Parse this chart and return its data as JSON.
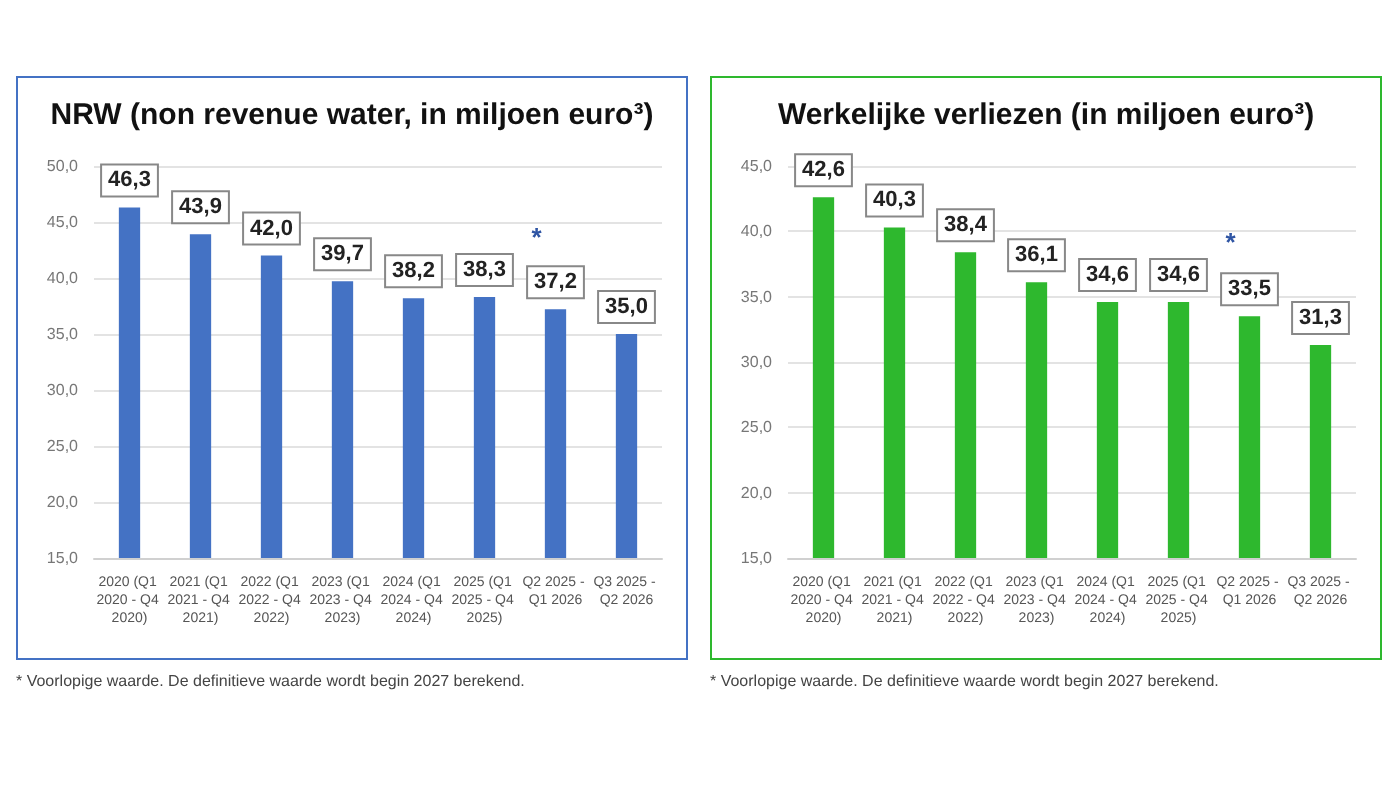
{
  "chart_data": [
    {
      "type": "bar",
      "title": "NRW (non revenue water, in miljoen euro³)",
      "categories": [
        "2020 (Q1 2020 - Q4 2020)",
        "2021 (Q1 2021 - Q4 2021)",
        "2022 (Q1 2022 - Q4 2022)",
        "2023 (Q1 2023 - Q4 2023)",
        "2024 (Q1 2024 - Q4 2024)",
        "2025 (Q1 2025 - Q4 2025)",
        "Q2 2025 - Q1 2026",
        "Q3 2025 - Q2 2026"
      ],
      "values": [
        46.3,
        43.9,
        42.0,
        39.7,
        38.2,
        38.3,
        37.2,
        35.0
      ],
      "value_labels": [
        "46,3",
        "43,9",
        "42,0",
        "39,7",
        "38,2",
        "38,3",
        "37,2",
        "35,0"
      ],
      "color": "#4472c4",
      "ylim": [
        15,
        50
      ],
      "yticks": [
        {
          "value": 15,
          "label": "15,0"
        },
        {
          "value": 20,
          "label": "20,0"
        },
        {
          "value": 25,
          "label": "25,0"
        },
        {
          "value": 30,
          "label": "30,0"
        },
        {
          "value": 35,
          "label": "35,0"
        },
        {
          "value": 40,
          "label": "40,0"
        },
        {
          "value": 45,
          "label": "45,0"
        },
        {
          "value": 50,
          "label": "50,0"
        }
      ],
      "grid": "y",
      "annotations": [
        {
          "text": "*",
          "x": "2025 (Q1 2025 - Q4 2025)",
          "y": 38.3
        },
        "* Voorlopige waarde. De definitieve waarde wordt begin 2027 berekend."
      ]
    },
    {
      "type": "bar",
      "title": "Werkelijke verliezen (in miljoen euro³)",
      "categories": [
        "2020 (Q1 2020 - Q4 2020)",
        "2021 (Q1 2021 - Q4 2021)",
        "2022 (Q1 2022 - Q4 2022)",
        "2023 (Q1 2023 - Q4 2023)",
        "2024 (Q1 2024 - Q4 2024)",
        "2025 (Q1 2025 - Q4 2025)",
        "Q2 2025 - Q1 2026",
        "Q3 2025 - Q2 2026"
      ],
      "values": [
        42.6,
        40.3,
        38.4,
        36.1,
        34.6,
        34.6,
        33.5,
        31.3
      ],
      "value_labels": [
        "42,6",
        "40,3",
        "38,4",
        "36,1",
        "34,6",
        "34,6",
        "33,5",
        "31,3"
      ],
      "color": "#2eb82e",
      "ylim": [
        15,
        45
      ],
      "yticks": [
        {
          "value": 15,
          "label": "15,0"
        },
        {
          "value": 20,
          "label": "20,0"
        },
        {
          "value": 25,
          "label": "25,0"
        },
        {
          "value": 30,
          "label": "30,0"
        },
        {
          "value": 35,
          "label": "35,0"
        },
        {
          "value": 40,
          "label": "40,0"
        },
        {
          "value": 45,
          "label": "45,0"
        }
      ],
      "grid": "y",
      "annotations": [
        {
          "text": "*",
          "x": "2025 (Q1 2025 - Q4 2025)",
          "y": 34.6
        },
        "* Voorlopige waarde. De definitieve waarde wordt begin 2027 berekend."
      ]
    }
  ]
}
